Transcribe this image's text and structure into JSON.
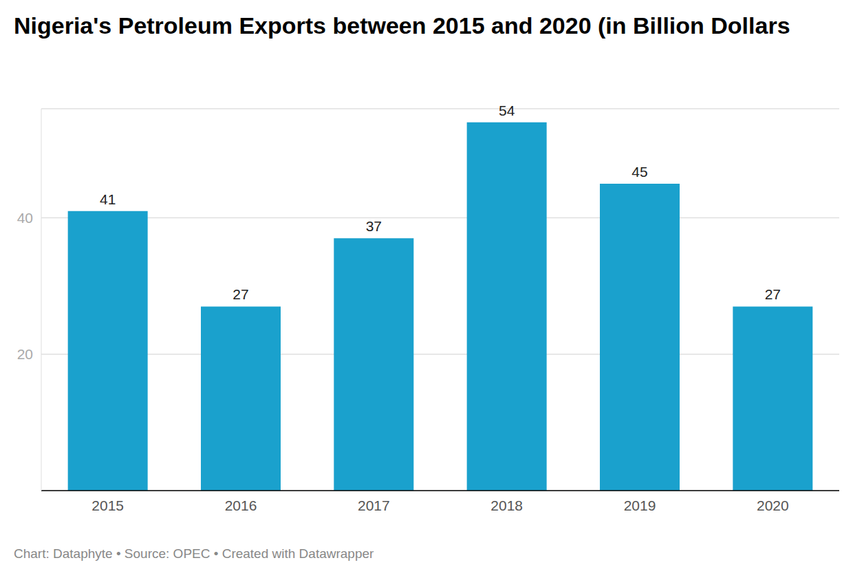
{
  "chart_data": {
    "type": "bar",
    "title": "Nigeria's Petroleum Exports between 2015 and 2020 (in Billion Dollars",
    "source": "Chart: Dataphyte • Source: OPEC • Created with Datawrapper",
    "categories": [
      "2015",
      "2016",
      "2017",
      "2018",
      "2019",
      "2020"
    ],
    "values": [
      41,
      27,
      37,
      54,
      45,
      27
    ],
    "color": "#1aa1cd",
    "ylim": [
      0,
      56
    ],
    "yticks": [
      20,
      40
    ],
    "grid": true,
    "data_labels": true
  }
}
